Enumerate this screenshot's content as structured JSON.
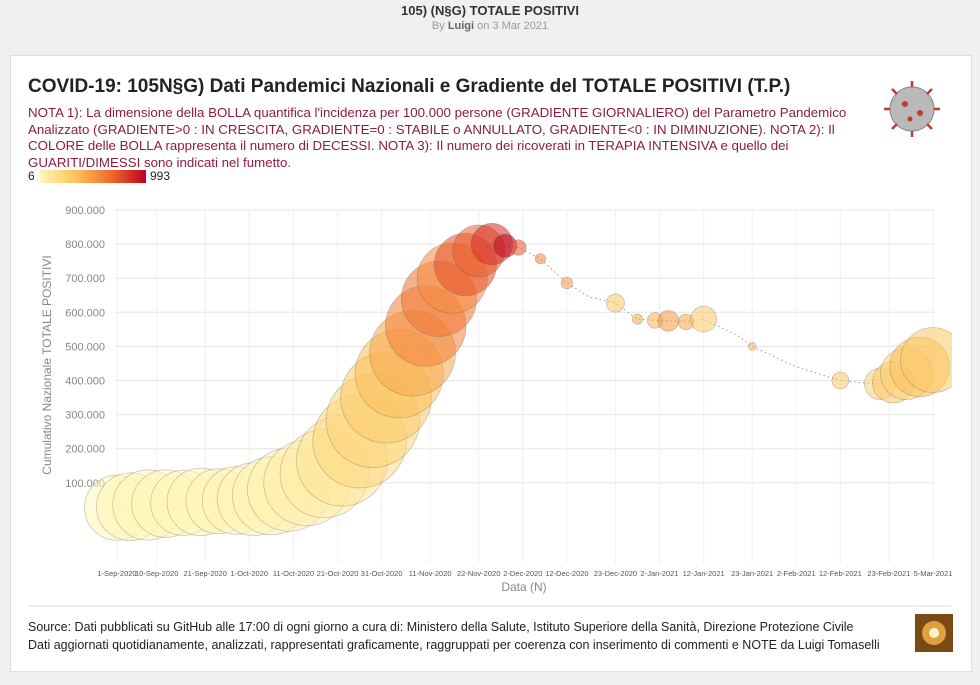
{
  "header": {
    "title": "105) (N§G) TOTALE POSITIVI",
    "by": "By",
    "author": "Luigi",
    "date": "on 3 Mar 2021"
  },
  "chart_data": {
    "type": "scatter",
    "title": "COVID-19: 105N§G) Dati Pandemici Nazionali e Gradiente del TOTALE POSITIVI (T.P.)",
    "subtitle": "NOTA 1): La dimensione della BOLLA quantifica l'incidenza per 100.000 persone (GRADIENTE GIORNALIERO) del Parametro Pandemico Analizzato (GRADIENTE>0 : IN CRESCITA, GRADIENTE=0 : STABILE o ANNULLATO, GRADIENTE<0 : IN DIMINUZIONE). NOTA 2): Il COLORE delle BOLLA rappresenta il numero di DECESSI. NOTA 3): Il numero dei ricoverati in TERAPIA INTENSIVA e quello dei GUARITI/DIMESSI sono indicati nel fumetto.",
    "x_label": "Data (N)",
    "y_label": "Cumulativo Nazionale TOTALE POSITIVI",
    "colorlim": [
      6,
      993
    ],
    "colors": [
      "#fff6b8",
      "#fcc45c",
      "#f06a2c",
      "#c0001f"
    ],
    "x": [
      "2020-09-01",
      "2020-09-04",
      "2020-09-08",
      "2020-09-12",
      "2020-09-16",
      "2020-09-20",
      "2020-09-24",
      "2020-09-28",
      "2020-10-02",
      "2020-10-06",
      "2020-10-10",
      "2020-10-14",
      "2020-10-18",
      "2020-10-22",
      "2020-10-26",
      "2020-10-29",
      "2020-11-01",
      "2020-11-04",
      "2020-11-07",
      "2020-11-10",
      "2020-11-13",
      "2020-11-16",
      "2020-11-19",
      "2020-11-22",
      "2020-11-25",
      "2020-11-28",
      "2020-12-01",
      "2020-12-06",
      "2020-12-12",
      "2020-12-17",
      "2020-12-23",
      "2020-12-28",
      "2021-01-01",
      "2021-01-04",
      "2021-01-08",
      "2021-01-12",
      "2021-01-16",
      "2021-01-20",
      "2021-01-23",
      "2021-01-28",
      "2021-02-02",
      "2021-02-07",
      "2021-02-12",
      "2021-02-18",
      "2021-02-21",
      "2021-02-24",
      "2021-02-27",
      "2021-03-02",
      "2021-03-05"
    ],
    "values": [
      26800,
      30000,
      35000,
      39000,
      41000,
      44000,
      46000,
      48000,
      52000,
      62000,
      80000,
      100000,
      127000,
      165000,
      222000,
      282000,
      350000,
      420000,
      480000,
      560000,
      640000,
      700000,
      740000,
      780000,
      800000,
      795000,
      790000,
      757000,
      686000,
      645000,
      627000,
      580000,
      576000,
      575000,
      572000,
      580000,
      555000,
      530000,
      500000,
      470000,
      440000,
      420000,
      400000,
      392000,
      390000,
      395000,
      420000,
      440000,
      460000
    ],
    "sizes": [
      50,
      52,
      54,
      52,
      50,
      52,
      50,
      52,
      56,
      60,
      64,
      66,
      68,
      70,
      72,
      72,
      70,
      68,
      66,
      62,
      58,
      54,
      48,
      40,
      32,
      18,
      12,
      8,
      9,
      null,
      14,
      8,
      12,
      16,
      12,
      20,
      null,
      null,
      6,
      null,
      null,
      null,
      13,
      null,
      24,
      32,
      40,
      46,
      50
    ],
    "color_values": [
      6,
      10,
      12,
      14,
      13,
      15,
      20,
      18,
      22,
      28,
      40,
      50,
      70,
      130,
      200,
      220,
      290,
      350,
      440,
      580,
      630,
      540,
      750,
      700,
      850,
      993,
      730,
      560,
      500,
      null,
      300,
      450,
      400,
      500,
      450,
      300,
      null,
      null,
      400,
      null,
      null,
      null,
      300,
      null,
      250,
      300,
      250,
      350,
      300
    ],
    "xlim": [
      "2020-09-01",
      "2021-03-05"
    ],
    "xticks": [
      {
        "value": "2020-09-01",
        "label": "1-Sep-2020"
      },
      {
        "value": "2020-09-10",
        "label": "10-Sep-2020"
      },
      {
        "value": "2020-09-21",
        "label": "21-Sep-2020"
      },
      {
        "value": "2020-10-01",
        "label": "1-Oct-2020"
      },
      {
        "value": "2020-10-11",
        "label": "11-Oct-2020"
      },
      {
        "value": "2020-10-21",
        "label": "21-Oct-2020"
      },
      {
        "value": "2020-10-31",
        "label": "31-Oct-2020"
      },
      {
        "value": "2020-11-11",
        "label": "11-Nov-2020"
      },
      {
        "value": "2020-11-22",
        "label": "22-Nov-2020"
      },
      {
        "value": "2020-12-02",
        "label": "2-Dec-2020"
      },
      {
        "value": "2020-12-12",
        "label": "12-Dec-2020"
      },
      {
        "value": "2020-12-23",
        "label": "23-Dec-2020"
      },
      {
        "value": "2021-01-02",
        "label": "2-Jan-2021"
      },
      {
        "value": "2021-01-12",
        "label": "12-Jan-2021"
      },
      {
        "value": "2021-01-23",
        "label": "23-Jan-2021"
      },
      {
        "value": "2021-02-02",
        "label": "2-Feb-2021"
      },
      {
        "value": "2021-02-12",
        "label": "12-Feb-2021"
      },
      {
        "value": "2021-02-23",
        "label": "23-Feb-2021"
      },
      {
        "value": "2021-03-05",
        "label": "5-Mar-2021"
      }
    ],
    "ylim": [
      -100000,
      900000
    ],
    "yticks": [
      {
        "value": 100000,
        "label": "100.000"
      },
      {
        "value": 200000,
        "label": "200.000"
      },
      {
        "value": 300000,
        "label": "300.000"
      },
      {
        "value": 400000,
        "label": "400.000"
      },
      {
        "value": 500000,
        "label": "500.000"
      },
      {
        "value": 600000,
        "label": "600.000"
      },
      {
        "value": 700000,
        "label": "700.000"
      },
      {
        "value": 800000,
        "label": "800.000"
      },
      {
        "value": 900000,
        "label": "900.000"
      }
    ],
    "grid": true
  },
  "footer": {
    "lines": [
      "Source: Dati pubblicati su GitHub alle 17:00 di ogni giorno a cura di: Ministero della Salute, Istituto Superiore della Sanità, Direzione Protezione Civile",
      "Dati aggiornati quotidianamente, analizzati, rappresentati graficamente, raggruppati per coerenza con inserimento di commenti e NOTE da Luigi Tomaselli"
    ]
  }
}
